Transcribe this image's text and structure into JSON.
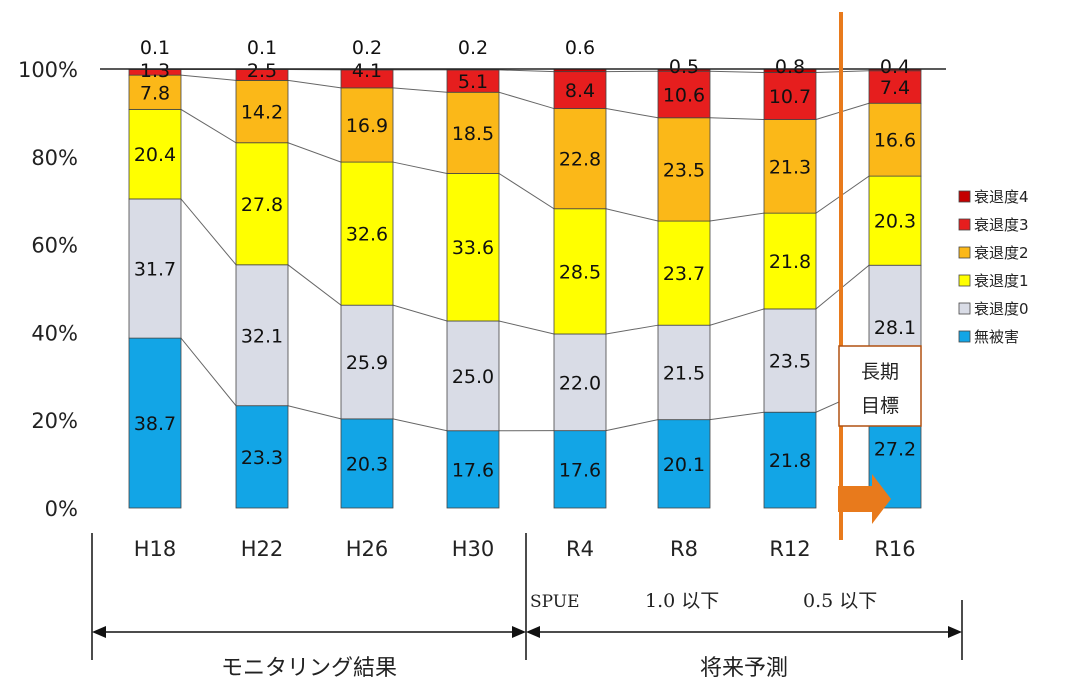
{
  "chart_data": {
    "type": "bar",
    "stacked": true,
    "normalized_percent": true,
    "categories": [
      "H18",
      "H22",
      "H26",
      "H30",
      "R4",
      "R8",
      "R12",
      "R16"
    ],
    "yticks": [
      "0%",
      "20%",
      "40%",
      "60%",
      "80%",
      "100%"
    ],
    "ylim": [
      0,
      100
    ],
    "series": [
      {
        "name": "無被害",
        "color": "#12a5e6",
        "values": [
          38.7,
          23.3,
          20.3,
          17.6,
          17.6,
          20.1,
          21.8,
          27.2
        ]
      },
      {
        "name": "衰退度0",
        "color": "#d9dce6",
        "values": [
          31.7,
          32.1,
          25.9,
          25.0,
          22.0,
          21.5,
          23.5,
          28.1
        ]
      },
      {
        "name": "衰退度1",
        "color": "#ffff00",
        "values": [
          20.4,
          27.8,
          32.6,
          33.6,
          28.5,
          23.7,
          21.8,
          20.3
        ]
      },
      {
        "name": "衰退度2",
        "color": "#fbb818",
        "values": [
          7.8,
          14.2,
          16.9,
          18.5,
          22.8,
          23.5,
          21.3,
          16.6
        ]
      },
      {
        "name": "衰退度3",
        "color": "#e61e1e",
        "values": [
          1.3,
          2.5,
          4.1,
          5.1,
          8.4,
          10.6,
          10.7,
          7.4
        ]
      },
      {
        "name": "衰退度4",
        "color": "#c40000",
        "values": [
          0.1,
          0.1,
          0.2,
          0.2,
          0.6,
          0.5,
          0.8,
          0.4
        ]
      }
    ],
    "legend_position": "right",
    "legend_order": [
      "衰退度4",
      "衰退度3",
      "衰退度2",
      "衰退度1",
      "衰退度0",
      "無被害"
    ],
    "label_texts": [
      [
        "38.7",
        "23.3",
        "20.3",
        "17.6",
        "17.6",
        "20.1",
        "21.8",
        "27.2"
      ],
      [
        "31.7",
        "32.1",
        "25.9",
        "25.0",
        "22.0",
        "21.5",
        "23.5",
        "28.1"
      ],
      [
        "20.4",
        "27.8",
        "32.6",
        "33.6",
        "28.5",
        "23.7",
        "21.8",
        "20.3"
      ],
      [
        "7.8",
        "14.2",
        "16.9",
        "18.5",
        "22.8",
        "23.5",
        "21.3",
        "16.6"
      ],
      [
        "1.3",
        "2.5",
        "4.1",
        "5.1",
        "8.4",
        "10.6",
        "10.7",
        "7.4"
      ],
      [
        "0.1",
        "0.1",
        "0.2",
        "0.2",
        "0.6",
        "0.5",
        "0.8",
        "0.4"
      ]
    ]
  },
  "annotations": {
    "spue_label": "SPUE",
    "spue_value_1": "1.0 以下",
    "spue_value_2": "0.5 以下",
    "long_term_goal": [
      "長期",
      "目標"
    ],
    "bracket_left": "モニタリング結果",
    "bracket_right": "将来予測",
    "vline_color": "#e87a1c"
  }
}
